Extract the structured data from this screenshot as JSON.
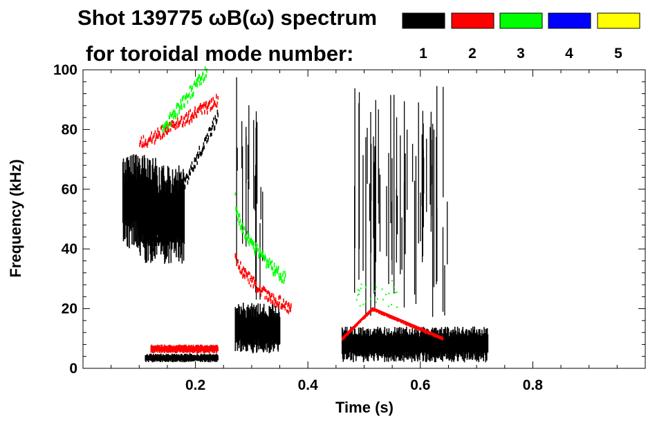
{
  "chart_data": {
    "type": "heatmap",
    "title_line1": "Shot 139775 ωB(ω) spectrum",
    "title_line2": "for toroidal mode number:",
    "xlabel": "Time (s)",
    "ylabel": "Frequency (kHz)",
    "xlim": [
      0.0,
      1.0
    ],
    "ylim": [
      0,
      100
    ],
    "x_ticks": [
      0.2,
      0.4,
      0.6,
      0.8
    ],
    "x_tick_labels": [
      "0.2",
      "0.4",
      "0.6",
      "0.8"
    ],
    "y_ticks": [
      0,
      20,
      40,
      60,
      80,
      100
    ],
    "y_tick_labels": [
      "0",
      "20",
      "40",
      "60",
      "80",
      "100"
    ],
    "legend": [
      {
        "label": "1",
        "color": "#000000"
      },
      {
        "label": "2",
        "color": "#ff0000"
      },
      {
        "label": "3",
        "color": "#00ff00"
      },
      {
        "label": "4",
        "color": "#0000ff"
      },
      {
        "label": "5",
        "color": "#ffff00"
      }
    ],
    "features": [
      {
        "mode": "1",
        "kind": "blob",
        "t": [
          0.07,
          0.13
        ],
        "f": [
          40,
          72
        ]
      },
      {
        "mode": "1",
        "kind": "blob",
        "t": [
          0.1,
          0.18
        ],
        "f": [
          35,
          68
        ]
      },
      {
        "mode": "1",
        "kind": "chirp",
        "t": [
          0.12,
          0.24
        ],
        "f": [
          40,
          85
        ]
      },
      {
        "mode": "1",
        "kind": "band",
        "t": [
          0.11,
          0.24
        ],
        "f": [
          2,
          5
        ]
      },
      {
        "mode": "1",
        "kind": "band",
        "t": [
          0.27,
          0.35
        ],
        "f": [
          5,
          22
        ]
      },
      {
        "mode": "1",
        "kind": "spikes",
        "t": [
          0.27,
          0.32
        ],
        "f": [
          20,
          100
        ]
      },
      {
        "mode": "1",
        "kind": "blob",
        "t": [
          0.46,
          0.72
        ],
        "f": [
          2,
          14
        ]
      },
      {
        "mode": "1",
        "kind": "spikes",
        "t": [
          0.48,
          0.65
        ],
        "f": [
          15,
          95
        ]
      },
      {
        "mode": "2",
        "kind": "chirp",
        "t": [
          0.1,
          0.24
        ],
        "f": [
          75,
          90
        ]
      },
      {
        "mode": "2",
        "kind": "decay",
        "t": [
          0.27,
          0.37
        ],
        "f": [
          40,
          20
        ]
      },
      {
        "mode": "2",
        "kind": "arc",
        "t": [
          0.46,
          0.64
        ],
        "f": [
          10,
          20
        ]
      },
      {
        "mode": "2",
        "kind": "band",
        "t": [
          0.12,
          0.24
        ],
        "f": [
          5,
          8
        ]
      },
      {
        "mode": "3",
        "kind": "chirp",
        "t": [
          0.14,
          0.22
        ],
        "f": [
          80,
          100
        ]
      },
      {
        "mode": "3",
        "kind": "decay",
        "t": [
          0.27,
          0.36
        ],
        "f": [
          58,
          30
        ]
      },
      {
        "mode": "3",
        "kind": "scatter",
        "t": [
          0.48,
          0.56
        ],
        "f": [
          20,
          30
        ]
      }
    ]
  }
}
